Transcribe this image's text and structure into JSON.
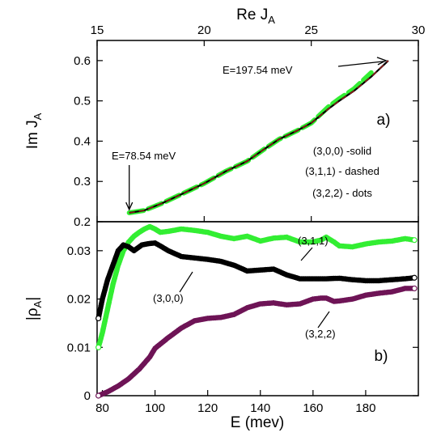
{
  "chart_data": [
    {
      "panel_label": "a)",
      "type": "line",
      "xlabel_main": "Re J",
      "xlabel_sub": "A",
      "ylabel_main": "Im J",
      "ylabel_sub": "A",
      "x_axis_position": "top",
      "xlim": [
        15,
        30
      ],
      "ylim": [
        0.2,
        0.65
      ],
      "xticks": [
        15,
        20,
        25,
        30
      ],
      "yticks": [
        0.2,
        0.3,
        0.4,
        0.5,
        0.6
      ],
      "grid": false,
      "legend_lines": [
        "(3,0,0) -solid",
        "(3,1,1) - dashed",
        "(3,2,2) - dots"
      ],
      "annotations": [
        {
          "text": "E=78.54 meV",
          "x": 16.5,
          "y": 0.222
        },
        {
          "text": "E=197.54 meV",
          "x": 28.6,
          "y": 0.6
        }
      ],
      "series": [
        {
          "name": "(3,0,0)",
          "style": "solid",
          "color": "#000000",
          "x": [
            16.5,
            17.2,
            18.0,
            19.0,
            20.0,
            21.0,
            22.0,
            22.8,
            23.5,
            24.3,
            25.0,
            25.8,
            26.3,
            27.0,
            27.8,
            28.6
          ],
          "y": [
            0.222,
            0.228,
            0.245,
            0.27,
            0.295,
            0.325,
            0.35,
            0.38,
            0.405,
            0.425,
            0.445,
            0.48,
            0.5,
            0.525,
            0.56,
            0.6
          ]
        },
        {
          "name": "(3,1,1)",
          "style": "dashed",
          "color": "#8B1A1A",
          "x": [
            16.5,
            17.2,
            18.0,
            19.0,
            20.0,
            21.0,
            22.0,
            22.8,
            23.5,
            24.3,
            25.0,
            25.8,
            26.3,
            27.0,
            27.8,
            28.6
          ],
          "y": [
            0.222,
            0.228,
            0.245,
            0.27,
            0.295,
            0.325,
            0.35,
            0.38,
            0.405,
            0.425,
            0.445,
            0.48,
            0.5,
            0.525,
            0.56,
            0.6
          ]
        },
        {
          "name": "(3,2,2)",
          "style": "dots",
          "color": "#33EE33",
          "x": [
            16.5,
            17.2,
            18.0,
            19.0,
            20.0,
            21.0,
            22.0,
            22.8,
            23.5,
            24.3,
            25.0,
            25.8,
            26.3,
            27.0,
            27.8
          ],
          "y": [
            0.222,
            0.228,
            0.245,
            0.27,
            0.295,
            0.325,
            0.35,
            0.38,
            0.405,
            0.425,
            0.445,
            0.485,
            0.505,
            0.53,
            0.57
          ]
        }
      ]
    },
    {
      "panel_label": "b)",
      "type": "scatter",
      "xlabel": "E (mev)",
      "ylabel_main": "|ρ",
      "ylabel_sub": "A",
      "ylabel_end": "|",
      "xlim": [
        78,
        200
      ],
      "ylim": [
        0,
        0.036
      ],
      "xticks": [
        80,
        100,
        120,
        140,
        160,
        180
      ],
      "yticks": [
        0,
        0.01,
        0.02,
        0.03
      ],
      "ytick_labels": [
        "0",
        "0.01",
        "0.02",
        "0.03"
      ],
      "grid": false,
      "annotations": [
        {
          "text": "(3,1,1)",
          "x": 170,
          "y": 0.0326
        },
        {
          "text": "(3,0,0)",
          "x": 100,
          "y": 0.0256
        },
        {
          "text": "(3,2,2)",
          "x": 170,
          "y": 0.0183
        }
      ],
      "series": [
        {
          "name": "(3,0,0)",
          "color": "#000000",
          "x": [
            78.5,
            80,
            82,
            84,
            86,
            88,
            90,
            92,
            95,
            98,
            100,
            102,
            105,
            110,
            115,
            120,
            125,
            130,
            135,
            140,
            145,
            150,
            155,
            160,
            165,
            170,
            175,
            180,
            185,
            190,
            195,
            198.5
          ],
          "y": [
            0.016,
            0.02,
            0.024,
            0.027,
            0.03,
            0.0312,
            0.0308,
            0.03,
            0.0312,
            0.0315,
            0.0316,
            0.031,
            0.03,
            0.0288,
            0.0285,
            0.0282,
            0.0278,
            0.027,
            0.0258,
            0.026,
            0.0262,
            0.025,
            0.0242,
            0.0242,
            0.0242,
            0.0243,
            0.024,
            0.0238,
            0.0238,
            0.024,
            0.0242,
            0.0244
          ]
        },
        {
          "name": "(3,1,1)",
          "color": "#33EE33",
          "x": [
            78.5,
            80,
            82,
            84,
            86,
            88,
            90,
            92,
            94,
            96,
            98,
            100,
            102,
            105,
            110,
            115,
            120,
            125,
            130,
            135,
            140,
            145,
            150,
            155,
            160,
            163,
            165,
            168,
            170,
            175,
            180,
            185,
            190,
            195,
            198.5
          ],
          "y": [
            0.01,
            0.013,
            0.018,
            0.023,
            0.027,
            0.03,
            0.0318,
            0.033,
            0.0338,
            0.0345,
            0.035,
            0.0345,
            0.0338,
            0.034,
            0.0345,
            0.0342,
            0.0338,
            0.033,
            0.0325,
            0.033,
            0.032,
            0.0326,
            0.0328,
            0.0318,
            0.0318,
            0.0322,
            0.0328,
            0.0318,
            0.031,
            0.0308,
            0.0314,
            0.0318,
            0.032,
            0.0325,
            0.0322
          ]
        },
        {
          "name": "(3,2,2)",
          "color": "#6E1456",
          "x": [
            78.5,
            82,
            86,
            90,
            94,
            98,
            100,
            105,
            110,
            115,
            120,
            125,
            130,
            135,
            140,
            145,
            150,
            155,
            160,
            163,
            165,
            168,
            170,
            175,
            180,
            185,
            190,
            195,
            198.5
          ],
          "y": [
            0.0,
            0.0008,
            0.002,
            0.0035,
            0.0055,
            0.008,
            0.0098,
            0.012,
            0.014,
            0.0155,
            0.016,
            0.0162,
            0.0168,
            0.0182,
            0.019,
            0.0192,
            0.0188,
            0.019,
            0.02,
            0.0202,
            0.0202,
            0.0195,
            0.0196,
            0.02,
            0.0208,
            0.0212,
            0.0215,
            0.0222,
            0.0222
          ]
        }
      ]
    }
  ]
}
